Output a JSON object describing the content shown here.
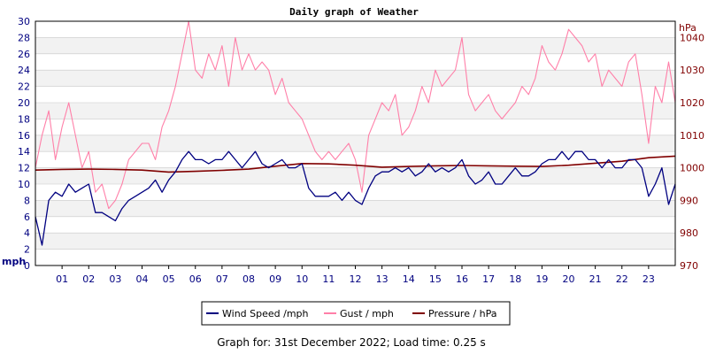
{
  "colors": {
    "wind": "#000080",
    "gust": "#ff7fa8",
    "pressure": "#800000",
    "band": "#f2f2f2",
    "grid": "#c8c8c8"
  },
  "chart_data": {
    "type": "line",
    "title": "Daily graph of Weather",
    "x_ticks": [
      "01",
      "02",
      "03",
      "04",
      "05",
      "06",
      "07",
      "08",
      "09",
      "10",
      "11",
      "12",
      "13",
      "14",
      "15",
      "16",
      "17",
      "18",
      "19",
      "20",
      "21",
      "22",
      "23"
    ],
    "x_range_hours": [
      0,
      24
    ],
    "left_axis": {
      "unit": "mph",
      "min": 0,
      "max": 30,
      "ticks": [
        "0",
        "2",
        "4",
        "6",
        "8",
        "10",
        "12",
        "14",
        "16",
        "18",
        "20",
        "22",
        "24",
        "26",
        "28",
        "30"
      ]
    },
    "right_axis": {
      "unit": "hPa",
      "min": 970,
      "max": 1045,
      "ticks": [
        "970",
        "980",
        "990",
        "1000",
        "1010",
        "1020",
        "1030",
        "1040"
      ]
    },
    "grid": true,
    "legend_position": "bottom-center",
    "series": [
      {
        "name": "Wind Speed /mph",
        "axis": "left",
        "color": "#000080",
        "x": [
          0,
          0.25,
          0.5,
          0.75,
          1,
          1.25,
          1.5,
          1.75,
          2,
          2.25,
          2.5,
          2.75,
          3,
          3.25,
          3.5,
          3.75,
          4,
          4.25,
          4.5,
          4.75,
          5,
          5.25,
          5.5,
          5.75,
          6,
          6.25,
          6.5,
          6.75,
          7,
          7.25,
          7.5,
          7.75,
          8,
          8.25,
          8.5,
          8.75,
          9,
          9.25,
          9.5,
          9.75,
          10,
          10.25,
          10.5,
          10.75,
          11,
          11.25,
          11.5,
          11.75,
          12,
          12.25,
          12.5,
          12.75,
          13,
          13.25,
          13.5,
          13.75,
          14,
          14.25,
          14.5,
          14.75,
          15,
          15.25,
          15.5,
          15.75,
          16,
          16.25,
          16.5,
          16.75,
          17,
          17.25,
          17.5,
          17.75,
          18,
          18.25,
          18.5,
          18.75,
          19,
          19.25,
          19.5,
          19.75,
          20,
          20.25,
          20.5,
          20.75,
          21,
          21.25,
          21.5,
          21.75,
          22,
          22.25,
          22.5,
          22.75,
          23,
          23.25,
          23.5,
          23.75,
          24
        ],
        "values": [
          6,
          2.5,
          8,
          9,
          8.5,
          10,
          9,
          9.5,
          10,
          6.5,
          6.5,
          6,
          5.5,
          7,
          8,
          8.5,
          9,
          9.5,
          10.5,
          9,
          10.5,
          11.5,
          13,
          14,
          13,
          13,
          12.5,
          13,
          13,
          14,
          13,
          12,
          13,
          14,
          12.5,
          12,
          12.5,
          13,
          12,
          12,
          12.5,
          9.5,
          8.5,
          8.5,
          8.5,
          9,
          8,
          9,
          8,
          7.5,
          9.5,
          11,
          11.5,
          11.5,
          12,
          11.5,
          12,
          11,
          11.5,
          12.5,
          11.5,
          12,
          11.5,
          12,
          13,
          11,
          10,
          10.5,
          11.5,
          10,
          10,
          11,
          12,
          11,
          11,
          11.5,
          12.5,
          13,
          13,
          14,
          13,
          14,
          14,
          13,
          13,
          12,
          13,
          12,
          12,
          13,
          13,
          12,
          8.5,
          10,
          12,
          7.5,
          10
        ]
      },
      {
        "name": "Gust / mph",
        "axis": "left",
        "color": "#ff7fa8",
        "x": [
          0,
          0.25,
          0.5,
          0.75,
          1,
          1.25,
          1.5,
          1.75,
          2,
          2.25,
          2.5,
          2.75,
          3,
          3.25,
          3.5,
          3.75,
          4,
          4.25,
          4.5,
          4.75,
          5,
          5.25,
          5.5,
          5.75,
          6,
          6.25,
          6.5,
          6.75,
          7,
          7.25,
          7.5,
          7.75,
          8,
          8.25,
          8.5,
          8.75,
          9,
          9.25,
          9.5,
          9.75,
          10,
          10.25,
          10.5,
          10.75,
          11,
          11.25,
          11.5,
          11.75,
          12,
          12.25,
          12.5,
          12.75,
          13,
          13.25,
          13.5,
          13.75,
          14,
          14.25,
          14.5,
          14.75,
          15,
          15.25,
          15.5,
          15.75,
          16,
          16.25,
          16.5,
          16.75,
          17,
          17.25,
          17.5,
          17.75,
          18,
          18.25,
          18.5,
          18.75,
          19,
          19.25,
          19.5,
          19.75,
          20,
          20.25,
          20.5,
          20.75,
          21,
          21.25,
          21.5,
          21.75,
          22,
          22.25,
          22.5,
          22.75,
          23,
          23.25,
          23.5,
          23.75,
          24
        ],
        "values": [
          12,
          16,
          19,
          13,
          17,
          20,
          16,
          12,
          14,
          9,
          10,
          7,
          8,
          10,
          13,
          14,
          15,
          15,
          13,
          17,
          19,
          22,
          26,
          30,
          24,
          23,
          26,
          24,
          27,
          22,
          28,
          24,
          26,
          24,
          25,
          24,
          21,
          23,
          20,
          19,
          18,
          16,
          14,
          13,
          14,
          13,
          14,
          15,
          13,
          9,
          16,
          18,
          20,
          19,
          21,
          16,
          17,
          19,
          22,
          20,
          24,
          22,
          23,
          24,
          28,
          21,
          19,
          20,
          21,
          19,
          18,
          19,
          20,
          22,
          21,
          23,
          27,
          25,
          24,
          26,
          29,
          28,
          27,
          25,
          26,
          22,
          24,
          23,
          22,
          25,
          26,
          21,
          15,
          22,
          20,
          25,
          20
        ]
      },
      {
        "name": "Pressure / hPa",
        "axis": "right",
        "color": "#800000",
        "x": [
          0,
          1,
          2,
          3,
          4,
          5,
          6,
          7,
          8,
          9,
          10,
          11,
          12,
          13,
          14,
          15,
          16,
          17,
          18,
          19,
          20,
          21,
          22,
          23,
          24
        ],
        "values": [
          999.3,
          999.5,
          999.6,
          999.5,
          999.3,
          998.7,
          998.9,
          999.2,
          999.6,
          1000.5,
          1001.3,
          1001.2,
          1000.8,
          1000.2,
          1000.4,
          1000.6,
          1000.7,
          1000.6,
          1000.5,
          1000.4,
          1000.8,
          1001.4,
          1002.0,
          1003.1,
          1003.6
        ]
      }
    ]
  },
  "footer": "Graph for: 31st December 2022; Load time: 0.25 s"
}
